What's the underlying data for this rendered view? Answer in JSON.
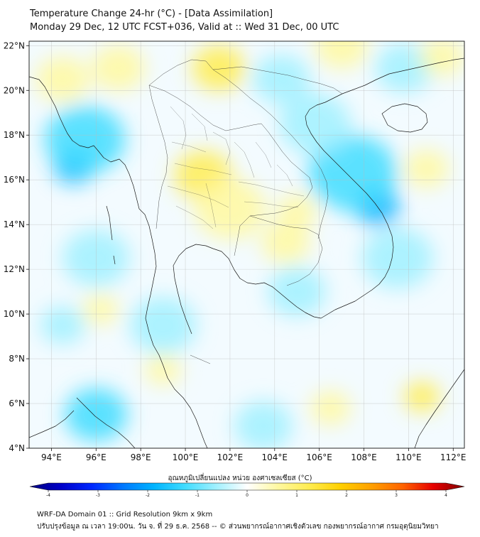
{
  "header": {
    "title_line1": "Temperature Change 24-hr (°C) - [Data Assimilation]",
    "title_line2": "Monday 29 Dec, 12 UTC FCST+036, Valid at :: Wed 31 Dec, 00 UTC"
  },
  "map": {
    "lat_labels": [
      "22°N",
      "20°N",
      "18°N",
      "16°N",
      "14°N",
      "12°N",
      "10°N",
      "8°N",
      "6°N",
      "4°N"
    ],
    "lat_values": [
      22,
      20,
      18,
      16,
      14,
      12,
      10,
      8,
      6,
      4
    ],
    "lon_labels": [
      "94°E",
      "96°E",
      "98°E",
      "100°E",
      "102°E",
      "104°E",
      "106°E",
      "108°E",
      "110°E",
      "112°E"
    ],
    "lon_values": [
      94,
      96,
      98,
      100,
      102,
      104,
      106,
      108,
      110,
      112
    ],
    "extent": {
      "lon_min": 93.0,
      "lon_max": 112.5,
      "lat_min": 4.0,
      "lat_max": 22.2
    },
    "anomalies": [
      {
        "lon": 95.0,
        "lat": 16.6,
        "value": -1.9,
        "spread": 0.9
      },
      {
        "lon": 95.5,
        "lat": 17.8,
        "value": -0.9,
        "spread": 1.8
      },
      {
        "lon": 108.6,
        "lat": 14.8,
        "value": -2.0,
        "spread": 1.0
      },
      {
        "lon": 107.5,
        "lat": 16.3,
        "value": -1.0,
        "spread": 2.0
      },
      {
        "lon": 105.8,
        "lat": 18.5,
        "value": -0.8,
        "spread": 1.6
      },
      {
        "lon": 109.5,
        "lat": 12.5,
        "value": -0.6,
        "spread": 1.6
      },
      {
        "lon": 104.3,
        "lat": 20.5,
        "value": -0.7,
        "spread": 1.3
      },
      {
        "lon": 109.8,
        "lat": 21.0,
        "value": -0.6,
        "spread": 1.3
      },
      {
        "lon": 96.0,
        "lat": 5.5,
        "value": -1.0,
        "spread": 1.4
      },
      {
        "lon": 99.0,
        "lat": 9.5,
        "value": -0.6,
        "spread": 1.5
      },
      {
        "lon": 96.0,
        "lat": 12.5,
        "value": -0.5,
        "spread": 1.5
      },
      {
        "lon": 105.0,
        "lat": 11.0,
        "value": -0.4,
        "spread": 1.3
      },
      {
        "lon": 103.5,
        "lat": 5.0,
        "value": -0.4,
        "spread": 1.3
      },
      {
        "lon": 94.5,
        "lat": 9.5,
        "value": -0.4,
        "spread": 1.0
      },
      {
        "lon": 101.5,
        "lat": 21.0,
        "value": 1.1,
        "spread": 1.2
      },
      {
        "lon": 100.8,
        "lat": 16.2,
        "value": 0.9,
        "spread": 1.3
      },
      {
        "lon": 102.0,
        "lat": 14.7,
        "value": 0.8,
        "spread": 1.6
      },
      {
        "lon": 104.5,
        "lat": 13.2,
        "value": 0.8,
        "spread": 1.1
      },
      {
        "lon": 105.0,
        "lat": 14.6,
        "value": 0.7,
        "spread": 0.9
      },
      {
        "lon": 94.5,
        "lat": 20.5,
        "value": 0.7,
        "spread": 1.2
      },
      {
        "lon": 97.0,
        "lat": 21.0,
        "value": 0.5,
        "spread": 1.2
      },
      {
        "lon": 107.0,
        "lat": 22.0,
        "value": 0.6,
        "spread": 1.2
      },
      {
        "lon": 111.5,
        "lat": 21.5,
        "value": 0.5,
        "spread": 1.0
      },
      {
        "lon": 110.6,
        "lat": 6.3,
        "value": 0.9,
        "spread": 0.8
      },
      {
        "lon": 96.2,
        "lat": 10.2,
        "value": 0.6,
        "spread": 0.8
      },
      {
        "lon": 99.0,
        "lat": 7.5,
        "value": 0.3,
        "spread": 0.8
      },
      {
        "lon": 106.5,
        "lat": 5.8,
        "value": 0.4,
        "spread": 0.9
      },
      {
        "lon": 110.8,
        "lat": 16.5,
        "value": 0.4,
        "spread": 1.0
      }
    ]
  },
  "colorbar": {
    "label": "อุณหภูมิเปลี่ยนแปลง หน่วย องศาเซลเซียส (°C)",
    "min": -4,
    "max": 4,
    "tick_labels": [
      "-4",
      "-3",
      "-2",
      "-1",
      "0",
      "1",
      "2",
      "3",
      "4"
    ],
    "tick_values": [
      -4,
      -3,
      -2,
      -1,
      0,
      1,
      2,
      3,
      4
    ],
    "palette": [
      "#00007f",
      "#0000c8",
      "#0028ff",
      "#0078ff",
      "#00b4ff",
      "#41dcff",
      "#a0f0ff",
      "#ffffff",
      "#fff8a0",
      "#ffec50",
      "#ffd000",
      "#ffa000",
      "#ff6400",
      "#e60000",
      "#7f0000"
    ]
  },
  "footer": {
    "line1": "WRF-DA Domain 01 :: Grid Resolution 9km x 9km",
    "line2": "ปรับปรุงข้อมูล ณ เวลา 19:00น. วัน จ. ที่ 29 ธ.ค. 2568 -- © ส่วนพยากรณ์อากาศเชิงตัวเลข กองพยากรณ์อากาศ กรมอุตุนิยมวิทยา"
  }
}
